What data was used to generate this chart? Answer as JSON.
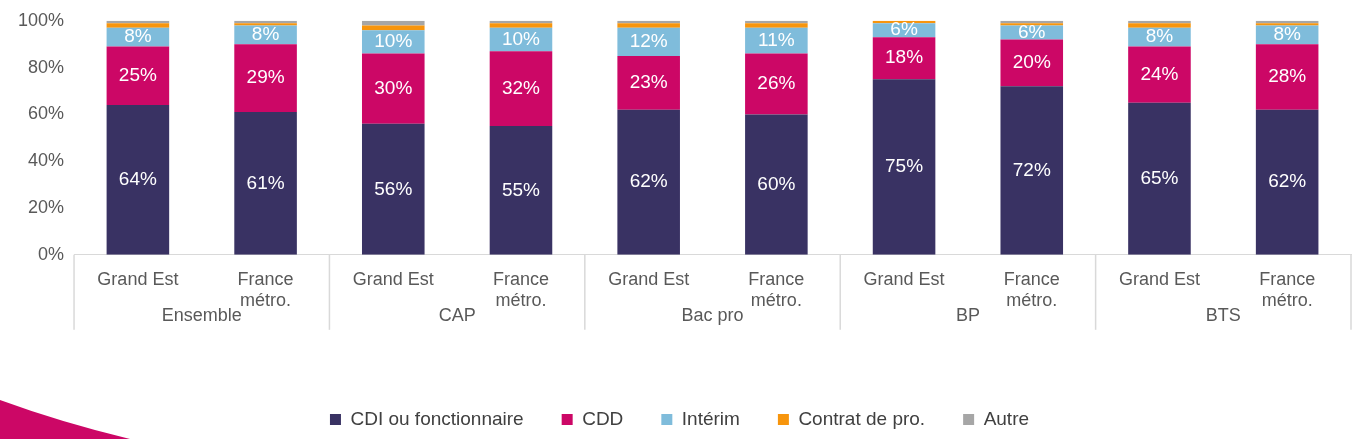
{
  "chart_data": {
    "type": "bar",
    "stacked": true,
    "categories": [
      "Grand Est",
      "France\nmétro.",
      "Grand Est",
      "France\nmétro.",
      "Grand Est",
      "France\nmétro.",
      "Grand Est",
      "France\nmétro.",
      "Grand Est",
      "France\nmétro."
    ],
    "annotations": [
      "Ensemble",
      "CAP",
      "Bac pro",
      "BP",
      "BTS"
    ],
    "series": [
      {
        "name": "CDI ou fonctionnaire",
        "color": "#393263",
        "values": [
          64,
          61,
          56,
          55,
          62,
          60,
          75,
          72,
          65,
          62
        ],
        "value_labels": [
          "64%",
          "61%",
          "56%",
          "55%",
          "62%",
          "60%",
          "75%",
          "72%",
          "65%",
          "62%"
        ]
      },
      {
        "name": "CDD",
        "color": "#cc0766",
        "values": [
          25,
          29,
          30,
          32,
          23,
          26,
          18,
          20,
          24,
          28
        ],
        "value_labels": [
          "25%",
          "29%",
          "30%",
          "32%",
          "23%",
          "26%",
          "18%",
          "20%",
          "24%",
          "28%"
        ]
      },
      {
        "name": "Intérim",
        "color": "#7fbcdb",
        "values": [
          8,
          8,
          10,
          10,
          12,
          11,
          6,
          6,
          8,
          8
        ],
        "value_labels": [
          "8%",
          "8%",
          "10%",
          "10%",
          "12%",
          "11%",
          "6%",
          "6%",
          "8%",
          "8%"
        ]
      },
      {
        "name": "Contrat de pro.",
        "color": "#f7950d",
        "values": [
          2,
          1,
          2,
          2,
          2,
          2,
          1,
          1,
          2,
          1
        ]
      },
      {
        "name": "Autre",
        "color": "#a6a6a6",
        "values": [
          1,
          1,
          2,
          1,
          1,
          1,
          0,
          1,
          1,
          1
        ]
      }
    ],
    "ylim": [
      0,
      100
    ],
    "yticks": [
      {
        "value": 0,
        "label": "0%"
      },
      {
        "value": 20,
        "label": "20%"
      },
      {
        "value": 40,
        "label": "40%"
      },
      {
        "value": 60,
        "label": "60%"
      },
      {
        "value": 80,
        "label": "80%"
      },
      {
        "value": 100,
        "label": "100%"
      }
    ],
    "legend": "bottom"
  }
}
